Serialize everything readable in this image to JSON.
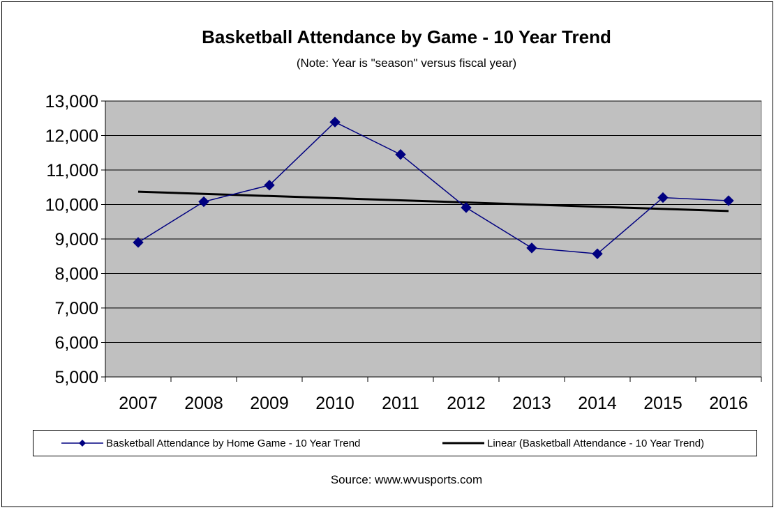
{
  "chart_data": {
    "type": "line",
    "title": "Basketball Attendance  by Game - 10 Year Trend",
    "subtitle": "(Note: Year is \"season\" versus fiscal year)",
    "categories": [
      "2007",
      "2008",
      "2009",
      "2010",
      "2011",
      "2012",
      "2013",
      "2014",
      "2015",
      "2016"
    ],
    "series": [
      {
        "name": "Basketball Attendance by Home Game - 10 Year Trend",
        "values": [
          8900,
          10080,
          10560,
          12390,
          11450,
          9910,
          8740,
          8570,
          10200,
          10110
        ],
        "color": "#000080",
        "marker": "diamond"
      }
    ],
    "trendline": {
      "name": "Linear (Basketball Attendance - 10 Year Trend)",
      "type": "linear",
      "start": 10370,
      "end": 9810,
      "color": "#000000"
    },
    "ylim": [
      5000,
      13000
    ],
    "yticks": [
      "5,000",
      "6,000",
      "7,000",
      "8,000",
      "9,000",
      "10,000",
      "11,000",
      "12,000",
      "13,000"
    ],
    "ytick_values": [
      5000,
      6000,
      7000,
      8000,
      9000,
      10000,
      11000,
      12000,
      13000
    ],
    "grid": true,
    "plot_background": "#c0c0c0",
    "legend_position": "bottom",
    "source": "Source: www.wvusports.com"
  }
}
